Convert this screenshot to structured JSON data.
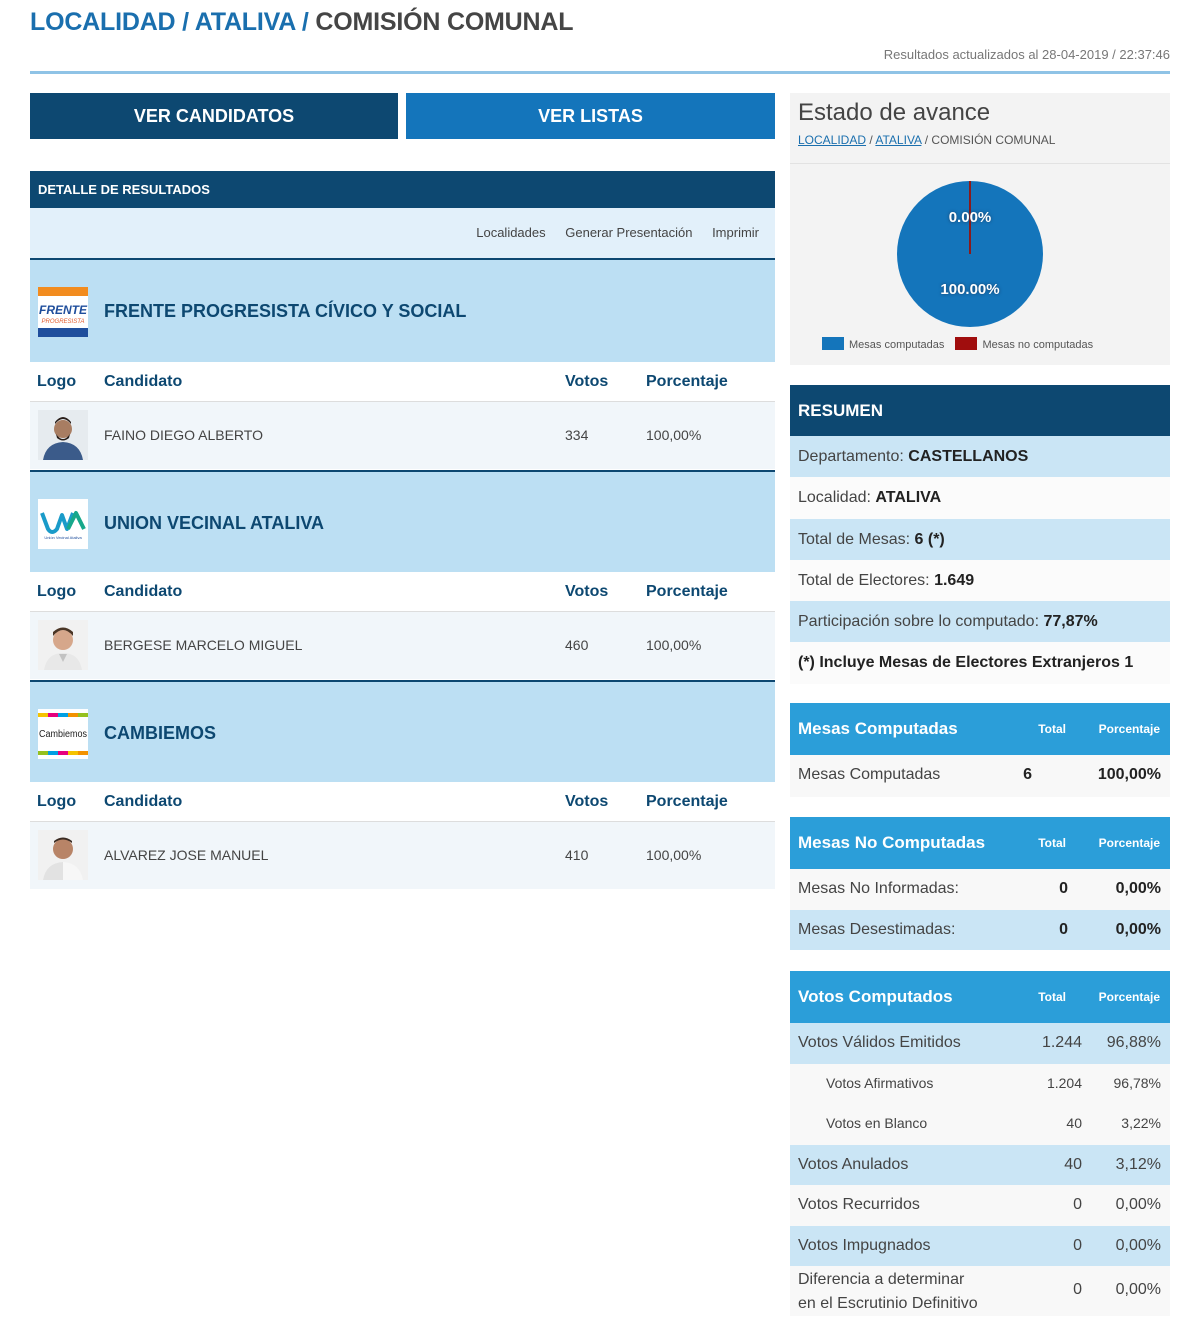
{
  "breadcrumb": {
    "level1": "LOCALIDAD",
    "sep1": "/",
    "level2": "ATALIVA",
    "sep2": "/",
    "current": "COMISIÓN COMUNAL"
  },
  "updated": "Resultados actualizados al 28-04-2019 / 22:37:46",
  "tabs": {
    "candidatos": "VER CANDIDATOS",
    "listas": "VER LISTAS"
  },
  "detail": {
    "header": "DETALLE DE RESULTADOS",
    "toolbar": {
      "localidades": "Localidades",
      "presentacion": "Generar Presentación",
      "imprimir": "Imprimir"
    },
    "columns": {
      "logo": "Logo",
      "candidato": "Candidato",
      "votos": "Votos",
      "porcentaje": "Porcentaje"
    },
    "parties": [
      {
        "name": "FRENTE PROGRESISTA CÍVICO Y SOCIAL",
        "logo_text": "FRENTE",
        "logo_sub": "PROGRESISTA",
        "candidate": "FAINO DIEGO ALBERTO",
        "votes": "334",
        "percent": "100,00%"
      },
      {
        "name": "UNION VECINAL ATALIVA",
        "logo_text": "UVA",
        "logo_sub": "Unión Vecinal Ataliva",
        "candidate": "BERGESE MARCELO MIGUEL",
        "votes": "460",
        "percent": "100,00%"
      },
      {
        "name": "CAMBIEMOS",
        "logo_text": "Cambiemos",
        "candidate": "ALVAREZ JOSE MANUEL",
        "votes": "410",
        "percent": "100,00%"
      }
    ]
  },
  "avance": {
    "title": "Estado de avance",
    "sub_level1": "LOCALIDAD",
    "sub_level2": "ATALIVA",
    "sub_current": "COMISIÓN COMUNAL",
    "pie": {
      "computadas_pct": "100.00%",
      "no_computadas_pct": "0.00%",
      "computadas_fraction": 1.0,
      "color_computadas": "#1475bb",
      "color_no_computadas": "#a00d0d"
    },
    "legend": {
      "computadas": "Mesas computadas",
      "no_computadas": "Mesas no computadas"
    }
  },
  "resumen": {
    "title": "RESUMEN",
    "departamento_label": "Departamento:",
    "departamento": "CASTELLANOS",
    "localidad_label": "Localidad:",
    "localidad": "ATALIVA",
    "mesas_label": "Total de Mesas:",
    "mesas": "6 (*)",
    "electores_label": "Total de Electores:",
    "electores": "1.649",
    "participacion_label": "Participación sobre lo computado:",
    "participacion": "77,87%",
    "nota": "(*) Incluye Mesas de Electores Extranjeros 1"
  },
  "mesas_computadas": {
    "title": "Mesas Computadas",
    "col_total": "Total",
    "col_pct": "Porcentaje",
    "rows": [
      {
        "label": "Mesas Computadas",
        "total": "6",
        "pct": "100,00%"
      }
    ]
  },
  "mesas_no_computadas": {
    "title": "Mesas No Computadas",
    "col_total": "Total",
    "col_pct": "Porcentaje",
    "rows": [
      {
        "label": "Mesas No Informadas:",
        "total": "0",
        "pct": "0,00%"
      },
      {
        "label": "Mesas Desestimadas:",
        "total": "0",
        "pct": "0,00%"
      }
    ]
  },
  "votos": {
    "title": "Votos Computados",
    "col_total": "Total",
    "col_pct": "Porcentaje",
    "rows": [
      {
        "label": "Votos Válidos Emitidos",
        "total": "1.244",
        "pct": "96,88%"
      },
      {
        "label": "Votos Afirmativos",
        "total": "1.204",
        "pct": "96,78%"
      },
      {
        "label": "Votos en Blanco",
        "total": "40",
        "pct": "3,22%"
      },
      {
        "label": "Votos Anulados",
        "total": "40",
        "pct": "3,12%"
      },
      {
        "label": "Votos Recurridos",
        "total": "0",
        "pct": "0,00%"
      },
      {
        "label": "Votos Impugnados",
        "total": "0",
        "pct": "0,00%"
      },
      {
        "label_line1": "Diferencia a determinar",
        "label_line2": "en el Escrutinio Definitivo",
        "total": "0",
        "pct": "0,00%"
      }
    ]
  }
}
